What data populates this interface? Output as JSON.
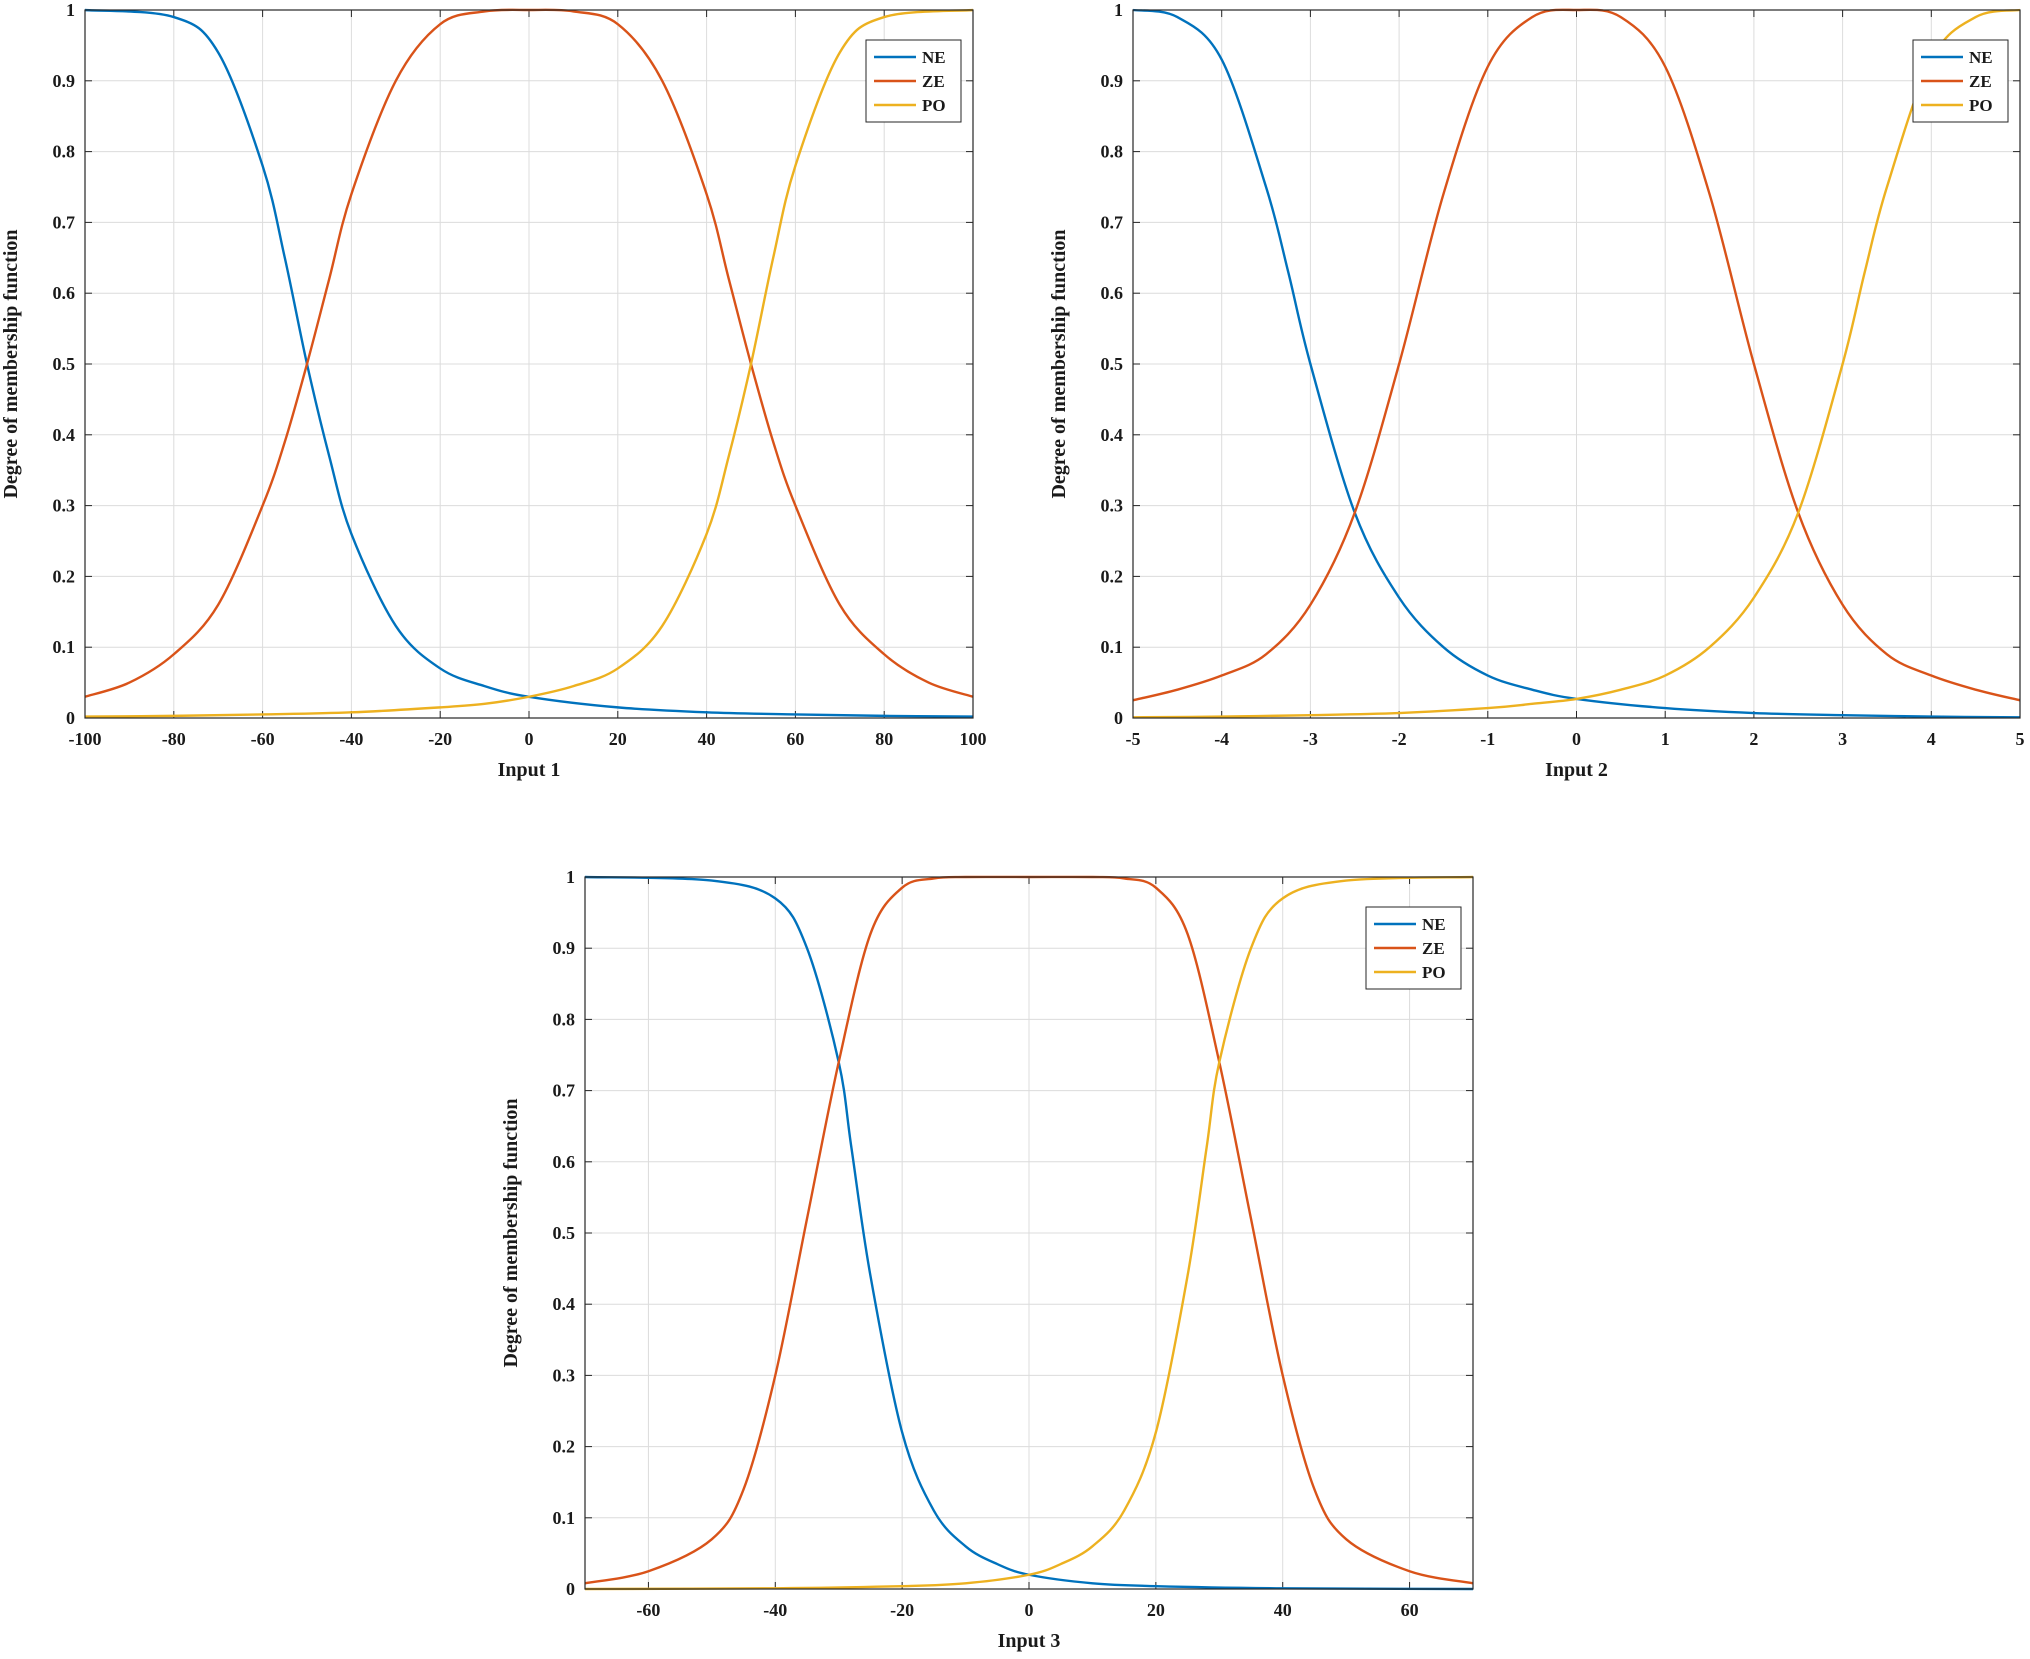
{
  "chart_data": [
    {
      "type": "line",
      "xlabel": "Input 1",
      "ylabel": "Degree of membership function",
      "xlim": [
        -100,
        100
      ],
      "ylim": [
        0,
        1
      ],
      "xticks": [
        "-100",
        "-80",
        "-60",
        "-40",
        "-20",
        "0",
        "20",
        "40",
        "60",
        "80",
        "100"
      ],
      "yticks": [
        "0",
        "0.1",
        "0.2",
        "0.3",
        "0.4",
        "0.5",
        "0.6",
        "0.7",
        "0.8",
        "0.9",
        "1"
      ],
      "grid": true,
      "legend_position": "top-right",
      "series": [
        {
          "name": "NE",
          "color": "#0072BD",
          "x": [
            -100,
            -80,
            -70,
            -60,
            -55,
            -50,
            -45,
            -40,
            -30,
            -20,
            -10,
            0,
            20,
            40,
            60,
            80,
            100
          ],
          "y": [
            1.0,
            0.99,
            0.94,
            0.78,
            0.65,
            0.5,
            0.37,
            0.26,
            0.13,
            0.07,
            0.045,
            0.03,
            0.015,
            0.008,
            0.005,
            0.003,
            0.002
          ]
        },
        {
          "name": "ZE",
          "color": "#D95319",
          "x": [
            -100,
            -90,
            -80,
            -70,
            -60,
            -55,
            -50,
            -45,
            -40,
            -30,
            -20,
            -10,
            0,
            10,
            20,
            30,
            40,
            45,
            50,
            55,
            60,
            70,
            80,
            90,
            100
          ],
          "y": [
            0.03,
            0.05,
            0.09,
            0.16,
            0.3,
            0.39,
            0.5,
            0.62,
            0.74,
            0.9,
            0.98,
            0.998,
            1.0,
            0.998,
            0.98,
            0.9,
            0.74,
            0.62,
            0.5,
            0.39,
            0.3,
            0.16,
            0.09,
            0.05,
            0.03
          ]
        },
        {
          "name": "PO",
          "color": "#EDB120",
          "x": [
            -100,
            -80,
            -60,
            -40,
            -20,
            -10,
            0,
            10,
            20,
            30,
            40,
            45,
            50,
            55,
            60,
            70,
            80,
            100
          ],
          "y": [
            0.002,
            0.003,
            0.005,
            0.008,
            0.015,
            0.02,
            0.03,
            0.045,
            0.07,
            0.13,
            0.26,
            0.37,
            0.5,
            0.65,
            0.78,
            0.94,
            0.99,
            1.0
          ]
        }
      ]
    },
    {
      "type": "line",
      "xlabel": "Input 2",
      "ylabel": "Degree of membership function",
      "xlim": [
        -5,
        5
      ],
      "ylim": [
        0,
        1
      ],
      "xticks": [
        "-5",
        "-4",
        "-3",
        "-2",
        "-1",
        "0",
        "1",
        "2",
        "3",
        "4",
        "5"
      ],
      "yticks": [
        "0",
        "0.1",
        "0.2",
        "0.3",
        "0.4",
        "0.5",
        "0.6",
        "0.7",
        "0.8",
        "0.9",
        "1"
      ],
      "grid": true,
      "legend_position": "top-right",
      "series": [
        {
          "name": "NE",
          "color": "#0072BD",
          "x": [
            -5,
            -4.5,
            -4,
            -3.5,
            -3.25,
            -3,
            -2.5,
            -2,
            -1.5,
            -1,
            -0.5,
            0,
            1,
            2,
            3,
            4,
            5
          ],
          "y": [
            1.0,
            0.99,
            0.93,
            0.75,
            0.63,
            0.5,
            0.29,
            0.17,
            0.1,
            0.06,
            0.04,
            0.027,
            0.014,
            0.007,
            0.004,
            0.002,
            0.001
          ]
        },
        {
          "name": "ZE",
          "color": "#D95319",
          "x": [
            -5,
            -4.5,
            -4,
            -3.5,
            -3,
            -2.5,
            -2,
            -1.5,
            -1,
            -0.5,
            0,
            0.5,
            1,
            1.5,
            2,
            2.5,
            3,
            3.5,
            4,
            4.5,
            5
          ],
          "y": [
            0.025,
            0.04,
            0.06,
            0.09,
            0.16,
            0.29,
            0.5,
            0.74,
            0.92,
            0.99,
            1.0,
            0.99,
            0.92,
            0.74,
            0.5,
            0.29,
            0.16,
            0.09,
            0.06,
            0.04,
            0.025
          ]
        },
        {
          "name": "PO",
          "color": "#EDB120",
          "x": [
            -5,
            -4,
            -3,
            -2,
            -1,
            -0.5,
            0,
            0.5,
            1,
            1.5,
            2,
            2.5,
            3,
            3.25,
            3.5,
            4,
            4.5,
            5
          ],
          "y": [
            0.001,
            0.002,
            0.004,
            0.007,
            0.014,
            0.02,
            0.027,
            0.04,
            0.06,
            0.1,
            0.17,
            0.29,
            0.5,
            0.63,
            0.75,
            0.93,
            0.99,
            1.0
          ]
        }
      ]
    },
    {
      "type": "line",
      "xlabel": "Input 3",
      "ylabel": "Degree of membership function",
      "xlim": [
        -70,
        70
      ],
      "ylim": [
        0,
        1
      ],
      "xticks": [
        "-60",
        "-40",
        "-20",
        "0",
        "20",
        "40",
        "60"
      ],
      "yticks": [
        "0",
        "0.1",
        "0.2",
        "0.3",
        "0.4",
        "0.5",
        "0.6",
        "0.7",
        "0.8",
        "0.9",
        "1"
      ],
      "grid": true,
      "legend_position": "top-right",
      "series": [
        {
          "name": "NE",
          "color": "#0072BD",
          "x": [
            -70,
            -50,
            -40,
            -35,
            -30,
            -28,
            -25,
            -20,
            -15,
            -10,
            -5,
            0,
            10,
            20,
            40,
            70
          ],
          "y": [
            1.0,
            0.995,
            0.97,
            0.9,
            0.74,
            0.62,
            0.44,
            0.22,
            0.11,
            0.06,
            0.035,
            0.02,
            0.008,
            0.004,
            0.001,
            0.0
          ]
        },
        {
          "name": "ZE",
          "color": "#D95319",
          "x": [
            -70,
            -60,
            -50,
            -45,
            -40,
            -35,
            -30,
            -25,
            -20,
            -15,
            -10,
            0,
            10,
            15,
            20,
            25,
            30,
            35,
            40,
            45,
            50,
            60,
            70
          ],
          "y": [
            0.008,
            0.025,
            0.07,
            0.14,
            0.3,
            0.52,
            0.74,
            0.92,
            0.985,
            0.998,
            1.0,
            1.0,
            1.0,
            0.998,
            0.985,
            0.92,
            0.74,
            0.52,
            0.3,
            0.14,
            0.07,
            0.025,
            0.008
          ]
        },
        {
          "name": "PO",
          "color": "#EDB120",
          "x": [
            -70,
            -40,
            -20,
            -10,
            0,
            5,
            10,
            15,
            20,
            25,
            28,
            30,
            35,
            40,
            50,
            70
          ],
          "y": [
            0.0,
            0.001,
            0.004,
            0.008,
            0.02,
            0.035,
            0.06,
            0.11,
            0.22,
            0.44,
            0.62,
            0.74,
            0.9,
            0.97,
            0.995,
            1.0
          ]
        }
      ]
    }
  ]
}
